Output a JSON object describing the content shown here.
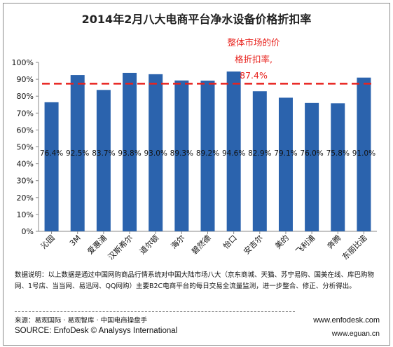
{
  "chart_data": {
    "type": "bar",
    "title": "2014年2月八大电商平台净水设备价格折扣率",
    "categories": [
      "沁园",
      "3M",
      "爱惠浦",
      "汉斯希尔",
      "道尔顿",
      "海尔",
      "碧然德",
      "怡口",
      "安吉尔",
      "美的",
      "飞利浦",
      "奔腾",
      "东丽比诺"
    ],
    "values": [
      76.4,
      92.5,
      83.7,
      93.8,
      93.0,
      89.3,
      89.2,
      94.6,
      82.9,
      79.1,
      76.0,
      75.8,
      91.0
    ],
    "value_labels": [
      "76.4%",
      "92.5%",
      "83.7%",
      "93.8%",
      "93.0%",
      "89.3%",
      "89.2%",
      "94.6%",
      "82.9%",
      "79.1%",
      "76.0%",
      "75.8%",
      "91.0%"
    ],
    "yticks": [
      "0%",
      "10%",
      "20%",
      "30%",
      "40%",
      "50%",
      "60%",
      "70%",
      "80%",
      "90%",
      "100%"
    ],
    "ylim": [
      0,
      100
    ],
    "grid": false,
    "legend": "none",
    "reference_line": {
      "value": 87.4,
      "label_line1": "整体市场的价",
      "label_line2": "格折扣率,",
      "label_line3": "87.4%",
      "color": "#e8231e"
    },
    "bar_color": "#2b63ad",
    "xlabel": "",
    "ylabel": ""
  },
  "note": "数据说明：以上数据是通过中国网购商品行情系统对中国大陆市场八大（京东商城、天猫、苏宁易购、国美在线、库巴购物网、1号店、当当网、易迅网、QQ网购）主要B2C电商平台的每日交易全流量监测，进一步整合、修正、分析得出。",
  "source_cn": "来源：易观国际 · 易观智库 · 中国电商操盘手",
  "source_en": "SOURCE: EnfoDesk © Analysys International",
  "url1": "www.enfodesk.com",
  "url2": "www.eguan.cn"
}
